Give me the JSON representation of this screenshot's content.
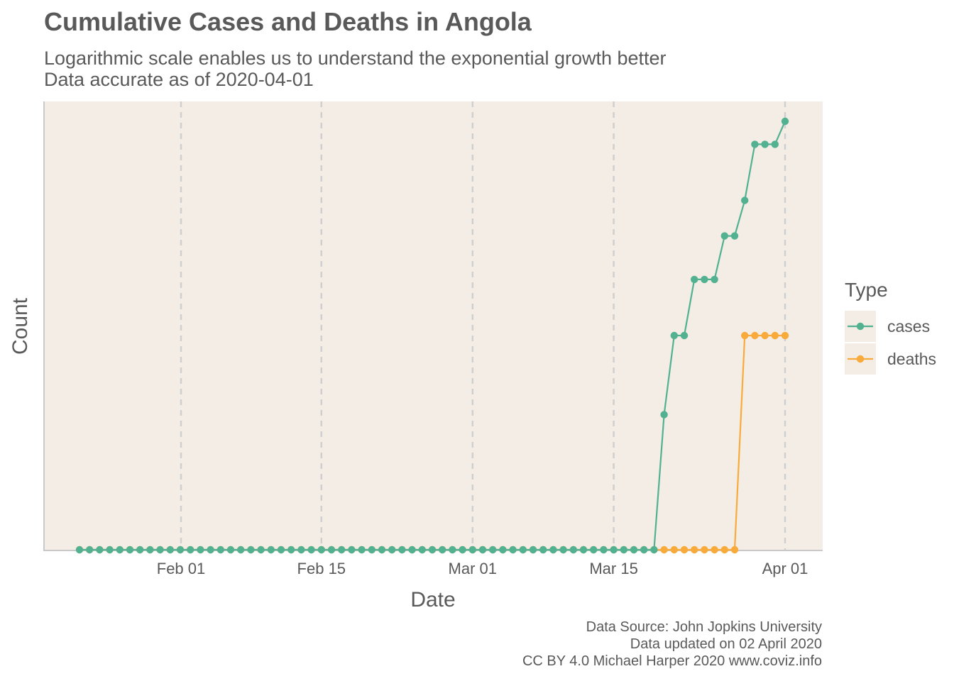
{
  "chart_data": {
    "type": "line",
    "title": "Cumulative Cases and Deaths in Angola",
    "subtitle": [
      "Logarithmic scale enables us to understand the exponential growth better",
      "Data accurate as of 2020-04-01"
    ],
    "xlabel": "Date",
    "ylabel": "Count",
    "y_scale": "log",
    "x_tick_labels": [
      "Feb 01",
      "Feb 15",
      "Mar 01",
      "Mar 15",
      "Apr 01"
    ],
    "x_ticks": [
      "2020-02-01",
      "2020-02-15",
      "2020-03-01",
      "2020-03-15",
      "2020-04-01"
    ],
    "xlim": [
      "2020-01-22",
      "2020-04-01"
    ],
    "grid": "vertical dashed major gridlines",
    "legend": {
      "title": "Type",
      "placement": "right",
      "entries": [
        "cases",
        "deaths"
      ]
    },
    "x_start": "2020-01-22",
    "series": [
      {
        "name": "cases",
        "color": "#52b191",
        "values": [
          0,
          0,
          0,
          0,
          0,
          0,
          0,
          0,
          0,
          0,
          0,
          0,
          0,
          0,
          0,
          0,
          0,
          0,
          0,
          0,
          0,
          0,
          0,
          0,
          0,
          0,
          0,
          0,
          0,
          0,
          0,
          0,
          0,
          0,
          0,
          0,
          0,
          0,
          0,
          0,
          0,
          0,
          0,
          0,
          0,
          0,
          0,
          0,
          0,
          0,
          0,
          0,
          0,
          0,
          0,
          0,
          0,
          0,
          1,
          2,
          2,
          3,
          3,
          3,
          4,
          4,
          5,
          7,
          7,
          7,
          8
        ]
      },
      {
        "name": "deaths",
        "color": "#f8ab3a",
        "values": [
          0,
          0,
          0,
          0,
          0,
          0,
          0,
          0,
          0,
          0,
          0,
          0,
          0,
          0,
          0,
          0,
          0,
          0,
          0,
          0,
          0,
          0,
          0,
          0,
          0,
          0,
          0,
          0,
          0,
          0,
          0,
          0,
          0,
          0,
          0,
          0,
          0,
          0,
          0,
          0,
          0,
          0,
          0,
          0,
          0,
          0,
          0,
          0,
          0,
          0,
          0,
          0,
          0,
          0,
          0,
          0,
          0,
          0,
          0,
          0,
          0,
          0,
          0,
          0,
          0,
          0,
          2,
          2,
          2,
          2,
          2
        ]
      }
    ]
  },
  "caption": [
    "Data Source: John Jopkins University",
    "Data updated on 02 April 2020",
    "CC BY 4.0 Michael Harper 2020 www.coviz.info"
  ],
  "colors": {
    "panel_background": "#f3ede5",
    "gridline": "#cfcfcf",
    "axis_line": "#c9c9c9",
    "text": "#595959"
  }
}
